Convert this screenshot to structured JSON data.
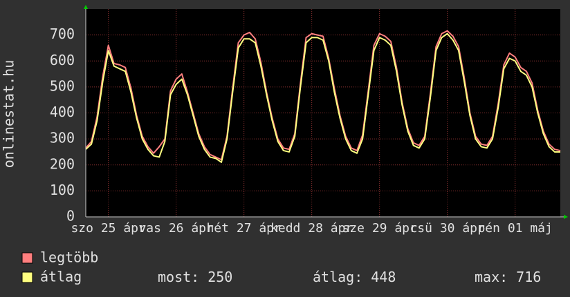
{
  "chart_data": {
    "type": "line",
    "ylabel": "onlinestat.hu",
    "xlim": [
      0,
      84
    ],
    "xticks": [
      {
        "value": 4,
        "label": "szo 25 ápr"
      },
      {
        "value": 16,
        "label": "vas 26 ápr"
      },
      {
        "value": 28,
        "label": "hét 27 ápr"
      },
      {
        "value": 40,
        "label": "kedd 28 ápr"
      },
      {
        "value": 52,
        "label": "sze 29 ápr"
      },
      {
        "value": 64,
        "label": "csü 30 ápr"
      },
      {
        "value": 76,
        "label": "pén 01 máj"
      }
    ],
    "ylim": [
      0,
      800
    ],
    "yticks": [
      0,
      100,
      200,
      300,
      400,
      500,
      600,
      700
    ],
    "grid": true,
    "series": [
      {
        "name": "legtöbb",
        "color": "#ff7f7f",
        "values": [
          265,
          290,
          385,
          540,
          660,
          590,
          585,
          575,
          495,
          390,
          310,
          270,
          245,
          270,
          300,
          485,
          530,
          550,
          480,
          400,
          320,
          270,
          240,
          230,
          220,
          310,
          495,
          670,
          700,
          710,
          685,
          595,
          480,
          380,
          300,
          265,
          260,
          320,
          515,
          690,
          705,
          700,
          695,
          610,
          495,
          390,
          310,
          265,
          255,
          315,
          485,
          660,
          705,
          695,
          675,
          575,
          440,
          340,
          285,
          275,
          310,
          475,
          655,
          705,
          716,
          695,
          655,
          535,
          400,
          310,
          280,
          275,
          310,
          435,
          585,
          630,
          615,
          575,
          560,
          515,
          410,
          330,
          280,
          260,
          255
        ]
      },
      {
        "name": "átlag",
        "color": "#ffff80",
        "values": [
          260,
          280,
          370,
          520,
          640,
          580,
          570,
          560,
          480,
          380,
          300,
          260,
          235,
          230,
          290,
          470,
          510,
          530,
          470,
          390,
          310,
          260,
          230,
          225,
          210,
          300,
          480,
          650,
          685,
          685,
          670,
          580,
          470,
          370,
          290,
          255,
          250,
          310,
          500,
          670,
          690,
          690,
          680,
          600,
          480,
          380,
          300,
          255,
          245,
          300,
          470,
          640,
          690,
          680,
          660,
          560,
          430,
          330,
          275,
          265,
          300,
          460,
          640,
          690,
          705,
          680,
          640,
          520,
          390,
          300,
          270,
          265,
          300,
          420,
          570,
          610,
          600,
          560,
          545,
          500,
          400,
          320,
          270,
          250,
          250
        ]
      }
    ],
    "legend_stats": [
      {
        "label": "most:",
        "value": 250
      },
      {
        "label": "átlag:",
        "value": 448
      },
      {
        "label": "max:",
        "value": 716
      }
    ]
  }
}
